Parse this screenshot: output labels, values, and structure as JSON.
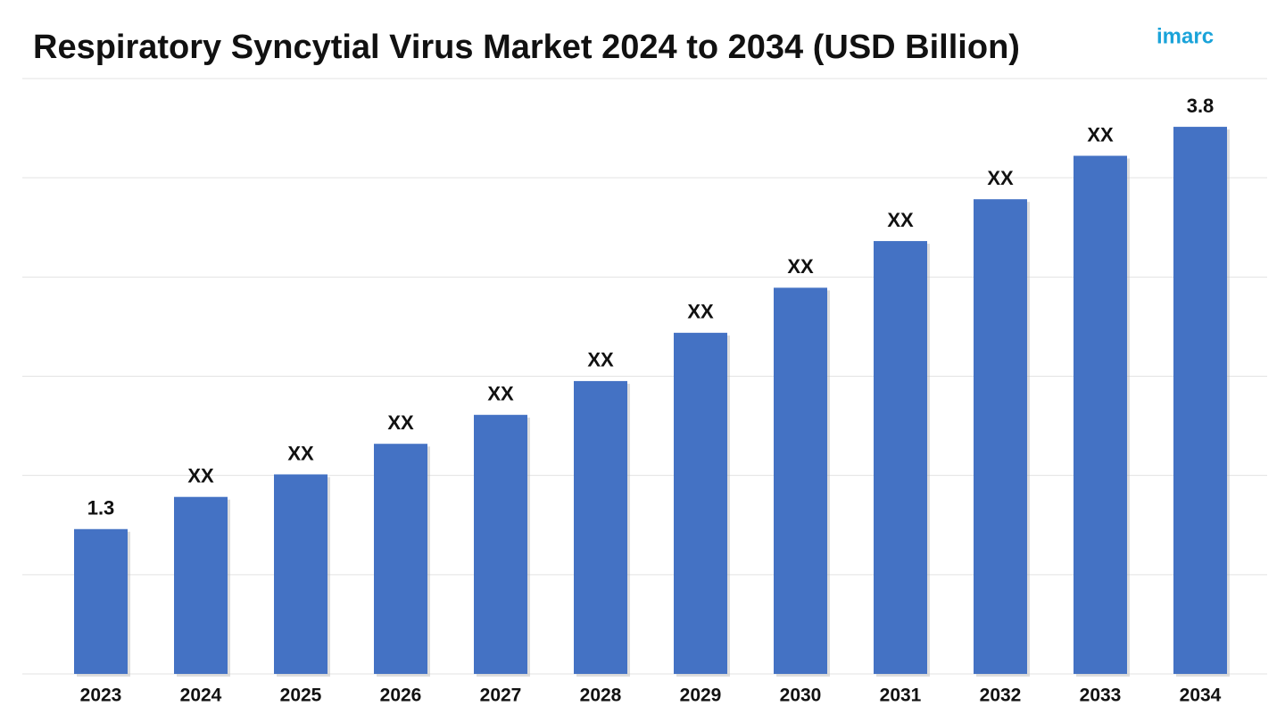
{
  "chart_data": {
    "type": "bar",
    "title": "Respiratory Syncytial Virus Market 2024 to 2034 (USD Billion)",
    "logo": "imarc",
    "categories": [
      "2023",
      "2024",
      "2025",
      "2026",
      "2027",
      "2028",
      "2029",
      "2030",
      "2031",
      "2032",
      "2033",
      "2034"
    ],
    "values": [
      1.3,
      1.5,
      1.64,
      1.83,
      2.01,
      2.22,
      2.52,
      2.8,
      3.09,
      3.35,
      3.62,
      3.8
    ],
    "value_labels": [
      "1.3",
      "XX",
      "XX",
      "XX",
      "XX",
      "XX",
      "XX",
      "XX",
      "XX",
      "XX",
      "XX",
      "3.8"
    ],
    "color": "#4472c4",
    "ylim": [
      0.4,
      4.1
    ],
    "yticks": [
      0.4,
      1.0167,
      1.6333,
      2.25,
      2.8667,
      3.4833,
      4.1
    ],
    "grid": true
  }
}
